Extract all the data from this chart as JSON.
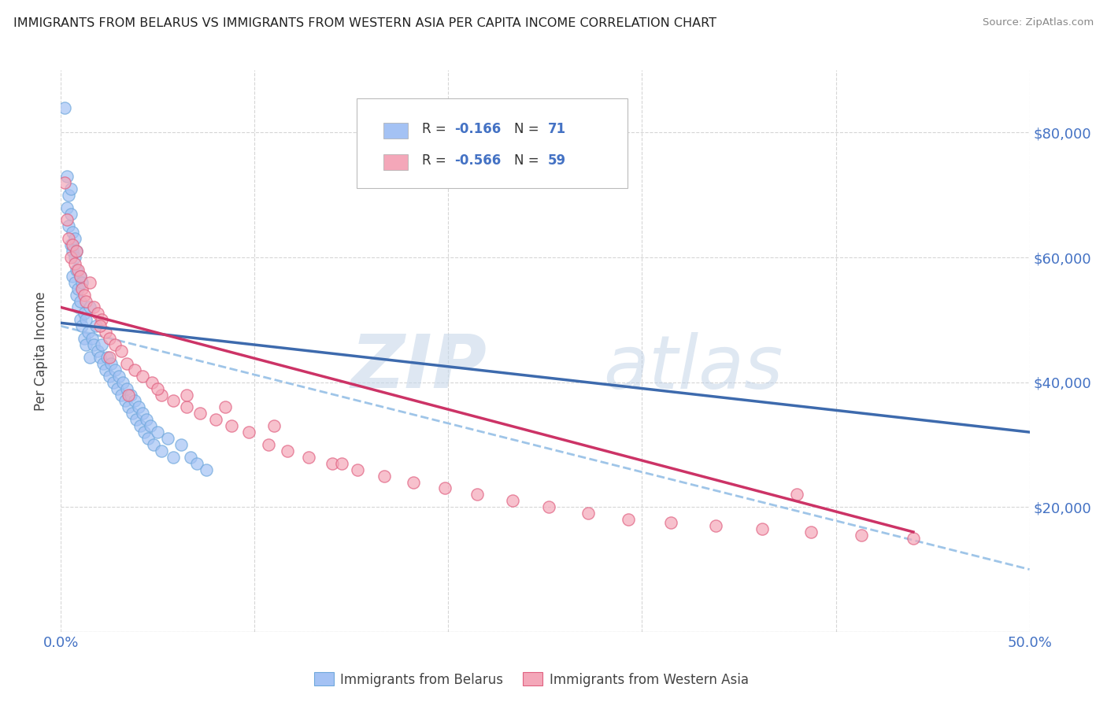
{
  "title": "IMMIGRANTS FROM BELARUS VS IMMIGRANTS FROM WESTERN ASIA PER CAPITA INCOME CORRELATION CHART",
  "source": "Source: ZipAtlas.com",
  "ylabel": "Per Capita Income",
  "xlim": [
    0.0,
    0.5
  ],
  "ylim": [
    0,
    90000
  ],
  "yticks": [
    0,
    20000,
    40000,
    60000,
    80000
  ],
  "ytick_labels": [
    "",
    "$20,000",
    "$40,000",
    "$60,000",
    "$80,000"
  ],
  "xticks": [
    0.0,
    0.1,
    0.2,
    0.3,
    0.4,
    0.5
  ],
  "legend_r1": "R = -0.166",
  "legend_n1": "N = 71",
  "legend_r2": "R = -0.566",
  "legend_n2": "N = 59",
  "blue_color": "#6fa8dc",
  "pink_color": "#e06080",
  "blue_fill": "#a4c2f4",
  "pink_fill": "#f4a7b9",
  "blue_line_color": "#3d6aad",
  "pink_line_color": "#cc3366",
  "dashed_line_color": "#9fc5e8",
  "title_color": "#222222",
  "axis_label_color": "#444444",
  "tick_color": "#4472c4",
  "source_color": "#888888",
  "grid_color": "#cccccc",
  "blue_scatter_x": [
    0.002,
    0.003,
    0.003,
    0.004,
    0.004,
    0.005,
    0.005,
    0.005,
    0.006,
    0.006,
    0.006,
    0.007,
    0.007,
    0.007,
    0.008,
    0.008,
    0.008,
    0.009,
    0.009,
    0.01,
    0.01,
    0.01,
    0.011,
    0.011,
    0.012,
    0.012,
    0.013,
    0.013,
    0.014,
    0.015,
    0.015,
    0.016,
    0.017,
    0.018,
    0.019,
    0.02,
    0.021,
    0.022,
    0.023,
    0.024,
    0.025,
    0.026,
    0.027,
    0.028,
    0.029,
    0.03,
    0.031,
    0.032,
    0.033,
    0.034,
    0.035,
    0.036,
    0.037,
    0.038,
    0.039,
    0.04,
    0.041,
    0.042,
    0.043,
    0.044,
    0.045,
    0.046,
    0.048,
    0.05,
    0.052,
    0.055,
    0.058,
    0.062,
    0.067,
    0.07,
    0.075
  ],
  "blue_scatter_y": [
    84000,
    73000,
    68000,
    70000,
    65000,
    67000,
    62000,
    71000,
    61000,
    64000,
    57000,
    60000,
    56000,
    63000,
    58000,
    54000,
    61000,
    55000,
    52000,
    57000,
    53000,
    50000,
    49000,
    56000,
    51000,
    47000,
    50000,
    46000,
    48000,
    52000,
    44000,
    47000,
    46000,
    49000,
    45000,
    44000,
    46000,
    43000,
    42000,
    44000,
    41000,
    43000,
    40000,
    42000,
    39000,
    41000,
    38000,
    40000,
    37000,
    39000,
    36000,
    38000,
    35000,
    37000,
    34000,
    36000,
    33000,
    35000,
    32000,
    34000,
    31000,
    33000,
    30000,
    32000,
    29000,
    31000,
    28000,
    30000,
    28000,
    27000,
    26000
  ],
  "pink_scatter_x": [
    0.002,
    0.003,
    0.004,
    0.005,
    0.006,
    0.007,
    0.008,
    0.009,
    0.01,
    0.011,
    0.012,
    0.013,
    0.015,
    0.017,
    0.019,
    0.021,
    0.023,
    0.025,
    0.028,
    0.031,
    0.034,
    0.038,
    0.042,
    0.047,
    0.052,
    0.058,
    0.065,
    0.072,
    0.08,
    0.088,
    0.097,
    0.107,
    0.117,
    0.128,
    0.14,
    0.153,
    0.167,
    0.182,
    0.198,
    0.215,
    0.233,
    0.252,
    0.272,
    0.293,
    0.315,
    0.338,
    0.362,
    0.387,
    0.413,
    0.44,
    0.02,
    0.025,
    0.035,
    0.05,
    0.065,
    0.085,
    0.11,
    0.145,
    0.38
  ],
  "pink_scatter_y": [
    72000,
    66000,
    63000,
    60000,
    62000,
    59000,
    61000,
    58000,
    57000,
    55000,
    54000,
    53000,
    56000,
    52000,
    51000,
    50000,
    48000,
    47000,
    46000,
    45000,
    43000,
    42000,
    41000,
    40000,
    38000,
    37000,
    36000,
    35000,
    34000,
    33000,
    32000,
    30000,
    29000,
    28000,
    27000,
    26000,
    25000,
    24000,
    23000,
    22000,
    21000,
    20000,
    19000,
    18000,
    17500,
    17000,
    16500,
    16000,
    15500,
    15000,
    49000,
    44000,
    38000,
    39000,
    38000,
    36000,
    33000,
    27000,
    22000
  ],
  "blue_trend_x": [
    0.0,
    0.5
  ],
  "blue_trend_y": [
    49500,
    32000
  ],
  "pink_trend_x": [
    0.0,
    0.44
  ],
  "pink_trend_y": [
    52000,
    16000
  ],
  "dashed_trend_x": [
    0.0,
    0.5
  ],
  "dashed_trend_y": [
    49000,
    10000
  ]
}
